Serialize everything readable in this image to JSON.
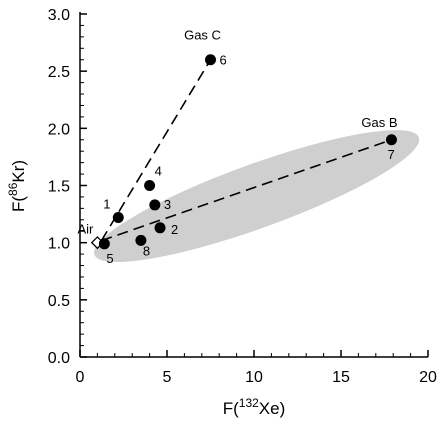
{
  "chart_data": {
    "type": "scatter",
    "xlabel": {
      "prefix": "F(",
      "sup": "132",
      "suffix": "Xe)"
    },
    "ylabel": {
      "prefix": "F(",
      "sup": "86",
      "suffix": "Kr)"
    },
    "xlim": [
      0,
      20
    ],
    "ylim": [
      0,
      3.0
    ],
    "xticks": [
      0,
      5,
      10,
      15,
      20
    ],
    "yticks": [
      "0.0",
      "0.5",
      "1.0",
      "1.5",
      "2.0",
      "2.5",
      "3.0"
    ],
    "grid": false,
    "points": [
      {
        "label": "1",
        "x": 2.2,
        "y": 1.22
      },
      {
        "label": "2",
        "x": 4.6,
        "y": 1.13
      },
      {
        "label": "3",
        "x": 4.3,
        "y": 1.33
      },
      {
        "label": "4",
        "x": 4.0,
        "y": 1.5
      },
      {
        "label": "5",
        "x": 1.4,
        "y": 0.99
      },
      {
        "label": "6",
        "x": 7.5,
        "y": 2.6
      },
      {
        "label": "7",
        "x": 17.9,
        "y": 1.9
      },
      {
        "label": "8",
        "x": 3.5,
        "y": 1.02
      }
    ],
    "air_point": {
      "label": "Air",
      "x": 1.0,
      "y": 1.0
    },
    "annotations": [
      {
        "text": "Gas C",
        "x": 7.5,
        "y": 2.6
      },
      {
        "text": "Gas B",
        "x": 17.9,
        "y": 1.9
      }
    ],
    "mixing_lines": [
      {
        "from": [
          1.0,
          1.0
        ],
        "to": [
          7.5,
          2.6
        ]
      },
      {
        "from": [
          1.0,
          1.0
        ],
        "to": [
          17.9,
          1.9
        ]
      }
    ],
    "colors": {
      "points": "#000000",
      "shaded_region": "#cfcfcf",
      "axes": "#000000"
    }
  }
}
